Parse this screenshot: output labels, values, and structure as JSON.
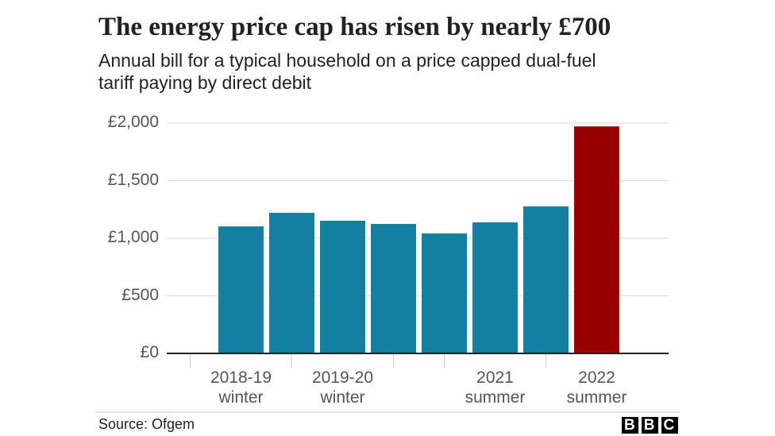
{
  "chart_data": {
    "type": "bar",
    "title": "The energy price cap has risen by nearly £700",
    "subtitle": "Annual bill for a typical household on a price capped dual-fuel tariff paying by direct debit",
    "categories": [
      "2018-19 winter",
      null,
      "2019-20 winter",
      null,
      null,
      "2021 summer",
      null,
      "2022 summer"
    ],
    "values": [
      1103,
      1221,
      1152,
      1124,
      1042,
      1138,
      1277,
      1971
    ],
    "colors": [
      "#1380a1",
      "#1380a1",
      "#1380a1",
      "#1380a1",
      "#1380a1",
      "#1380a1",
      "#1380a1",
      "#990000"
    ],
    "ylim": [
      0,
      2000
    ],
    "yticks": [
      {
        "value": 0,
        "label": "£0"
      },
      {
        "value": 500,
        "label": "£500"
      },
      {
        "value": 1000,
        "label": "£1,000"
      },
      {
        "value": 1500,
        "label": "£1,500"
      },
      {
        "value": 2000,
        "label": "£2,000"
      }
    ],
    "grid": true,
    "source": "Source: Ofgem",
    "logo": "BBC"
  }
}
